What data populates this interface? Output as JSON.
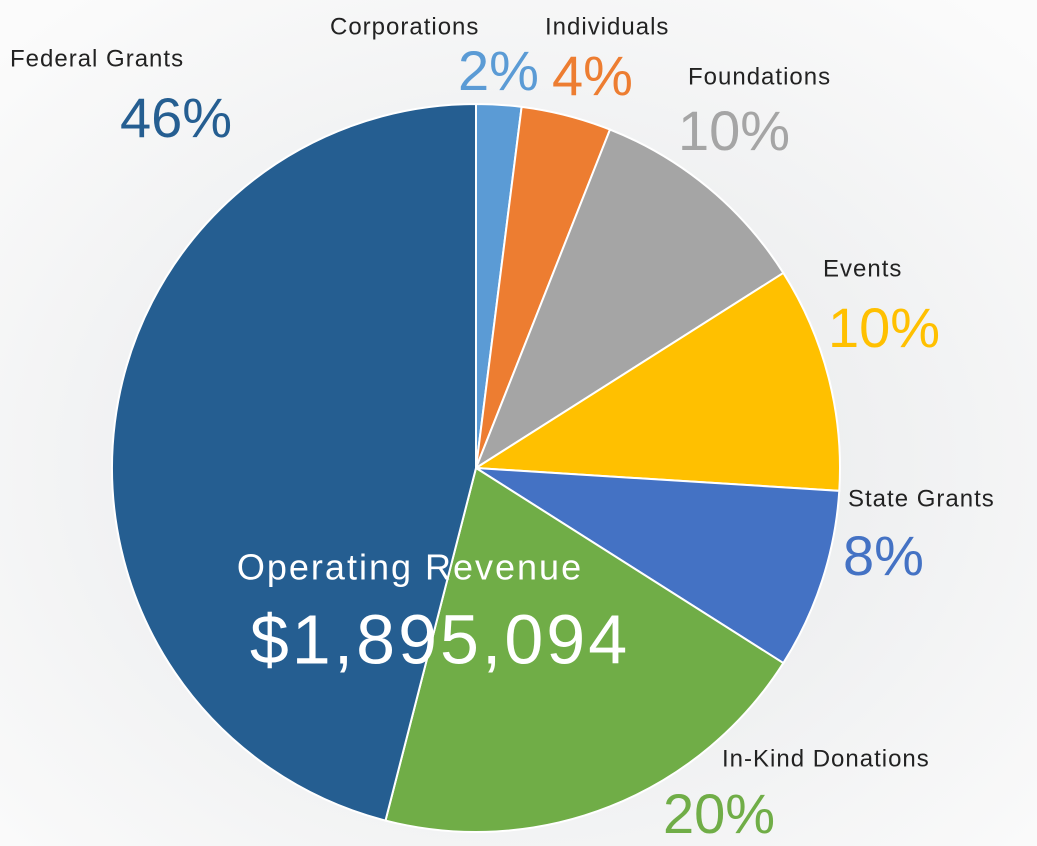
{
  "chart_data": {
    "type": "pie",
    "categories": [
      "Corporations",
      "Individuals",
      "Foundations",
      "Events",
      "State Grants",
      "In-Kind Donations",
      "Federal Grants"
    ],
    "values": [
      2,
      4,
      10,
      10,
      8,
      20,
      46
    ],
    "value_labels": [
      "2%",
      "4%",
      "10%",
      "10%",
      "8%",
      "20%",
      "46%"
    ],
    "colors": [
      "#5b9bd5",
      "#ed7d31",
      "#a5a5a5",
      "#ffc000",
      "#4472c4",
      "#70ad47",
      "#255e91"
    ],
    "annotations": [
      "Operating Revenue",
      "$1,895,094"
    ]
  }
}
